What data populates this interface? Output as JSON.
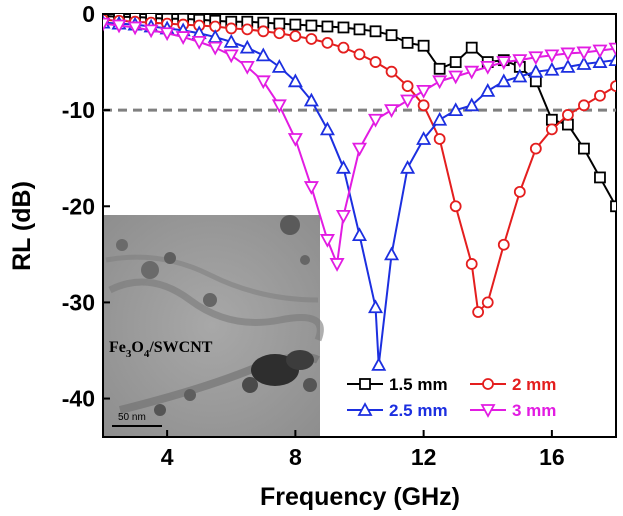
{
  "chart_data": {
    "type": "line",
    "xlabel": "Frequency (GHz)",
    "ylabel": "RL (dB)",
    "xlim": [
      2,
      18
    ],
    "ylim": [
      -44,
      0
    ],
    "xticks": [
      4,
      8,
      12,
      16
    ],
    "yticks": [
      0,
      -10,
      -20,
      -30,
      -40
    ],
    "reference_line": {
      "y": -10,
      "style": "dashed",
      "color": "#808080"
    },
    "legend_placement": "bottom-right",
    "series": [
      {
        "name": "1.5 mm",
        "color": "#000000",
        "marker": "square",
        "x": [
          2.0,
          2.5,
          3.0,
          3.5,
          4.0,
          4.5,
          5.0,
          5.5,
          6.0,
          6.5,
          7.0,
          7.5,
          8.0,
          8.5,
          9.0,
          9.5,
          10.0,
          10.5,
          11.0,
          11.5,
          12.0,
          12.5,
          13.0,
          13.5,
          14.0,
          14.5,
          15.0,
          15.5,
          16.0,
          16.5,
          17.0,
          17.5,
          18.0
        ],
        "values": [
          -0.2,
          -0.3,
          -0.3,
          -0.4,
          -0.5,
          -0.5,
          -0.6,
          -0.7,
          -0.8,
          -0.8,
          -0.9,
          -1.0,
          -1.1,
          -1.2,
          -1.3,
          -1.4,
          -1.6,
          -1.8,
          -2.2,
          -3.0,
          -3.3,
          -5.7,
          -5.0,
          -3.5,
          -5.0,
          -4.8,
          -5.5,
          -7.0,
          -11.0,
          -11.5,
          -14.0,
          -17.0,
          -20.0
        ]
      },
      {
        "name": "2 mm",
        "color": "#e41e1e",
        "marker": "circle",
        "x": [
          2.0,
          2.5,
          3.0,
          3.5,
          4.0,
          4.5,
          5.0,
          5.5,
          6.0,
          6.5,
          7.0,
          7.5,
          8.0,
          8.5,
          9.0,
          9.5,
          10.0,
          10.5,
          11.0,
          11.5,
          12.0,
          12.5,
          13.0,
          13.5,
          13.7,
          14.0,
          14.5,
          15.0,
          15.5,
          16.0,
          16.5,
          17.0,
          17.5,
          18.0
        ],
        "values": [
          -0.6,
          -0.7,
          -0.8,
          -0.9,
          -1.0,
          -1.1,
          -1.2,
          -1.3,
          -1.5,
          -1.6,
          -1.8,
          -2.0,
          -2.3,
          -2.6,
          -3.0,
          -3.5,
          -4.2,
          -5.0,
          -6.0,
          -7.5,
          -9.5,
          -13.0,
          -20.0,
          -26.0,
          -31.0,
          -30.0,
          -24.0,
          -18.5,
          -14.0,
          -12.0,
          -10.5,
          -9.5,
          -8.5,
          -7.5
        ]
      },
      {
        "name": "2.5 mm",
        "color": "#1c2fe0",
        "marker": "triangle-up",
        "x": [
          2.0,
          2.5,
          3.0,
          3.5,
          4.0,
          4.5,
          5.0,
          5.5,
          6.0,
          6.5,
          7.0,
          7.5,
          8.0,
          8.5,
          9.0,
          9.5,
          10.0,
          10.5,
          10.6,
          11.0,
          11.5,
          12.0,
          12.5,
          13.0,
          13.5,
          14.0,
          14.5,
          15.0,
          15.5,
          16.0,
          16.5,
          17.0,
          17.5,
          18.0
        ],
        "values": [
          -0.9,
          -1.0,
          -1.1,
          -1.3,
          -1.5,
          -1.7,
          -2.0,
          -2.4,
          -2.9,
          -3.5,
          -4.3,
          -5.5,
          -7.0,
          -9.0,
          -12.0,
          -16.0,
          -23.0,
          -30.5,
          -36.5,
          -25.0,
          -16.0,
          -13.0,
          -11.0,
          -10.0,
          -9.5,
          -8.0,
          -7.0,
          -6.5,
          -6.0,
          -5.8,
          -5.5,
          -5.2,
          -5.0,
          -4.8
        ]
      },
      {
        "name": "3 mm",
        "color": "#e21ce2",
        "marker": "triangle-down",
        "x": [
          2.0,
          2.5,
          3.0,
          3.5,
          4.0,
          4.5,
          5.0,
          5.5,
          6.0,
          6.5,
          7.0,
          7.5,
          8.0,
          8.5,
          9.0,
          9.3,
          9.5,
          10.0,
          10.5,
          11.0,
          11.5,
          12.0,
          12.5,
          13.0,
          13.5,
          14.0,
          14.5,
          15.0,
          15.5,
          16.0,
          16.5,
          17.0,
          17.5,
          18.0
        ],
        "values": [
          -1.0,
          -1.2,
          -1.4,
          -1.7,
          -2.0,
          -2.4,
          -2.9,
          -3.5,
          -4.3,
          -5.5,
          -7.0,
          -9.5,
          -13.0,
          -18.0,
          -23.5,
          -26.0,
          -21.0,
          -14.0,
          -11.0,
          -10.0,
          -9.0,
          -8.0,
          -7.0,
          -6.5,
          -6.0,
          -5.5,
          -5.0,
          -4.8,
          -4.5,
          -4.3,
          -4.1,
          -4.0,
          -3.8,
          -3.6
        ]
      }
    ]
  },
  "inset": {
    "label_parts": [
      "Fe",
      "3",
      "O",
      "4",
      "/SWCNT"
    ],
    "scale_bar": "50 nm"
  }
}
